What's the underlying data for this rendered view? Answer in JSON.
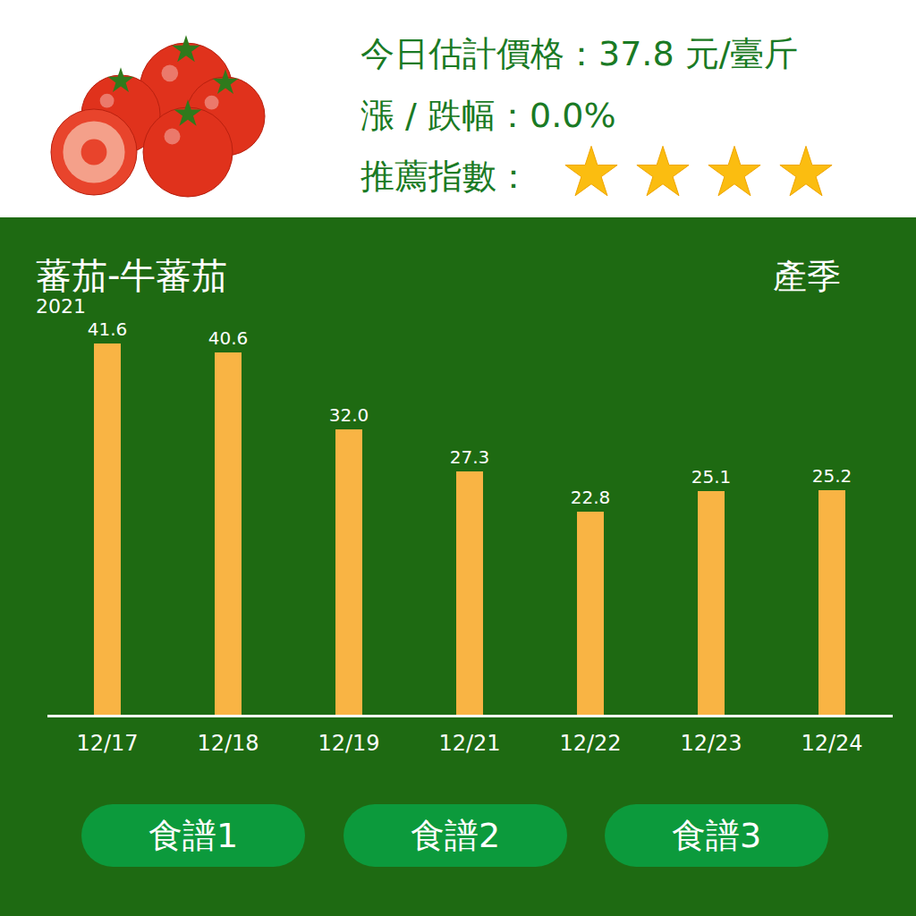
{
  "header": {
    "price_label": "今日估計價格：",
    "price": {
      "value": 37.8,
      "label": "37.8 元/臺斤"
    },
    "change_label": "漲 / 跌幅：",
    "change": {
      "value": 0.0,
      "label": "0.0%"
    },
    "rating_label": "推薦指數：",
    "rating": 4
  },
  "chart_data": {
    "type": "bar",
    "title": "蕃茄-牛蕃茄",
    "annotations": [
      "2021",
      "產季"
    ],
    "categories": [
      "12/17",
      "12/18",
      "12/19",
      "12/21",
      "12/22",
      "12/23",
      "12/24"
    ],
    "values": [
      41.6,
      40.6,
      32.0,
      27.3,
      22.8,
      25.1,
      25.2
    ],
    "value_labels": [
      "41.6",
      "40.6",
      "32.0",
      "27.3",
      "22.8",
      "25.1",
      "25.2"
    ],
    "color": "#f9b444",
    "ylim": [
      0,
      42
    ],
    "data_labels": true,
    "tick_labels": "x"
  },
  "buttons": [
    "食譜1",
    "食譜2",
    "食譜3"
  ]
}
